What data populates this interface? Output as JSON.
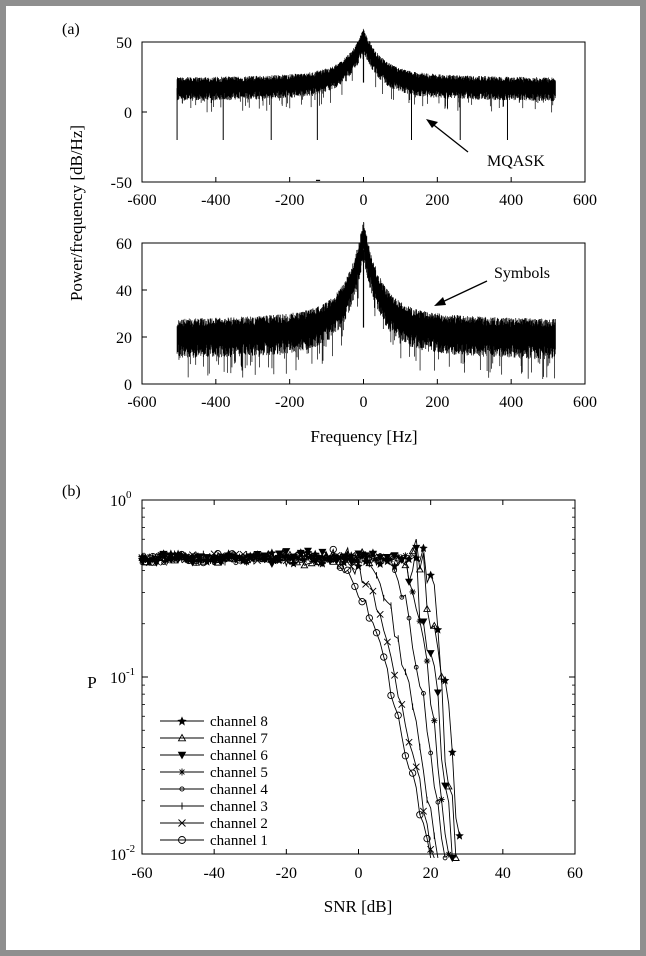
{
  "panels": {
    "a_label": "(a)",
    "b_label": "(b)"
  },
  "chart_data": [
    {
      "id": "spectrum-mqask",
      "type": "line",
      "series": [
        {
          "name": "MQASK",
          "style": "dense spectrum, baseline about 17 dB with peak 47 dB at 0 Hz, deep notches to -20 dB near -505, -380, -250, -125, 130, 262, 390 Hz"
        }
      ],
      "annotation": "MQASK",
      "xlim": [
        -600,
        600
      ],
      "ylim": [
        -50,
        50
      ],
      "x_ticks": [
        "-600",
        "-400",
        "-200",
        "0",
        "200",
        "400",
        "600"
      ],
      "y_ticks": [
        "-50",
        "0",
        "50"
      ],
      "stray_mark": "-",
      "spectrum_span_hz": [
        -505,
        520
      ],
      "baseline_db": 17,
      "peak_db": 47,
      "notch_freqs_hz": [
        -505,
        -380,
        -250,
        -125,
        130,
        262,
        390
      ],
      "notch_depth_db": -20
    },
    {
      "id": "spectrum-symbols",
      "type": "line",
      "series": [
        {
          "name": "Symbols",
          "style": "dense spectrum, baseline about 20 dB with peak 57 dB at 0 Hz"
        }
      ],
      "annotation": "Symbols",
      "xlim": [
        -600,
        600
      ],
      "ylim": [
        0,
        60
      ],
      "x_ticks": [
        "-600",
        "-400",
        "-200",
        "0",
        "200",
        "400",
        "600"
      ],
      "y_ticks": [
        "0",
        "20",
        "40",
        "60"
      ],
      "spectrum_span_hz": [
        -505,
        520
      ],
      "baseline_db": 20,
      "peak_db": 57
    },
    {
      "id": "shared-labels",
      "ylabel": "Power/frequency [dB/Hz]",
      "xlabel": "Frequency [Hz]"
    },
    {
      "id": "error-probability",
      "type": "line",
      "xlabel": "SNR [dB]",
      "ylabel": "P",
      "xlim": [
        -60,
        60
      ],
      "ylim": [
        0.01,
        1
      ],
      "yscale": "log",
      "x_ticks": [
        "-60",
        "-40",
        "-20",
        "0",
        "20",
        "40",
        "60"
      ],
      "y_ticks": [
        {
          "base": "10",
          "exp": "0",
          "value": 1
        },
        {
          "base": "10",
          "exp": "-1",
          "value": 0.1
        },
        {
          "base": "10",
          "exp": "-2",
          "value": 0.01
        }
      ],
      "legend_position": "bottom-left",
      "plateau": 0.47,
      "series": [
        {
          "name": "channel 8",
          "marker": "star",
          "knee": 18,
          "end": 28
        },
        {
          "name": "channel 7",
          "marker": "triangle-up",
          "knee": 16,
          "end": 27
        },
        {
          "name": "channel 6",
          "marker": "triangle-down",
          "knee": 14,
          "end": 26
        },
        {
          "name": "channel 5",
          "marker": "asterisk",
          "knee": 12,
          "end": 25
        },
        {
          "name": "channel 4",
          "marker": "small-circle",
          "knee": 8,
          "end": 24
        },
        {
          "name": "channel 3",
          "marker": "vbar",
          "knee": 2,
          "end": 22
        },
        {
          "name": "channel 2",
          "marker": "x",
          "knee": -3,
          "end": 21
        },
        {
          "name": "channel 1",
          "marker": "circle",
          "knee": -7,
          "end": 20
        }
      ]
    }
  ]
}
